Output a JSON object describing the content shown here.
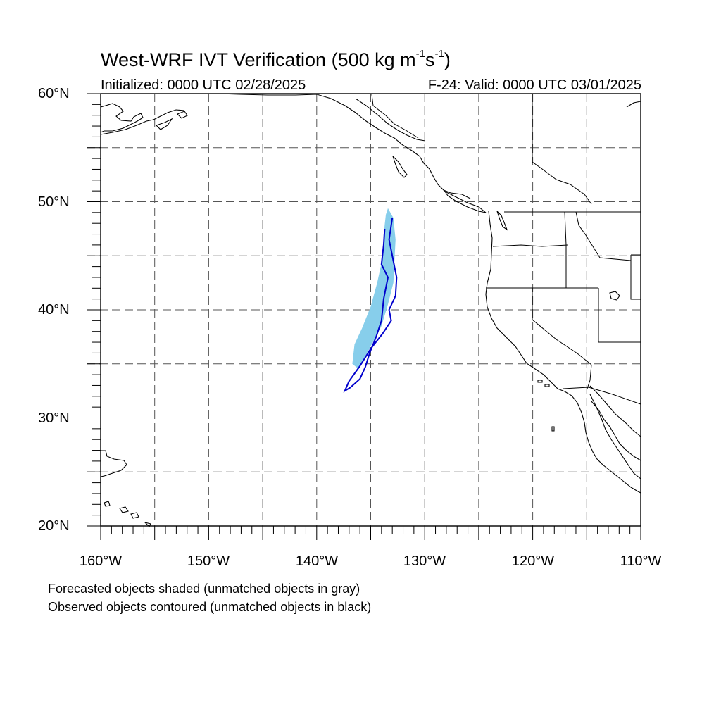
{
  "header": {
    "title_text": "West-WRF IVT Verification (500 kg m",
    "title_sup1": "-1",
    "title_mid": "s",
    "title_sup2": "-1",
    "title_end": ")",
    "initialized": "Initialized: 0000 UTC 02/28/2025",
    "valid": "F-24: Valid: 0000 UTC 03/01/2025"
  },
  "axes": {
    "lat_labels": [
      "60°N",
      "50°N",
      "40°N",
      "30°N",
      "20°N"
    ],
    "lon_labels": [
      "160°W",
      "150°W",
      "140°W",
      "130°W",
      "120°W",
      "110°W"
    ],
    "lon_range": [
      -160,
      -110
    ],
    "lat_range": [
      20,
      60
    ],
    "grid": "dashed every 5 degrees"
  },
  "legend": {
    "forecast_note": "Forecasted objects shaded (unmatched objects in gray)",
    "observed_note": "Observed objects contoured (unmatched objects in black)"
  },
  "colors": {
    "forecast_fill": "#87ceeb",
    "observed_contour": "#0000cc",
    "coastline": "#000000",
    "grid": "#000000"
  },
  "map_data": {
    "forecast_object_lonlat": [
      [
        -133.4,
        49.4
      ],
      [
        -132.9,
        48.5
      ],
      [
        -132.7,
        46.5
      ],
      [
        -132.8,
        44.5
      ],
      [
        -132.9,
        42.5
      ],
      [
        -133.4,
        40.5
      ],
      [
        -134.0,
        38.5
      ],
      [
        -134.8,
        37.0
      ],
      [
        -135.6,
        35.5
      ],
      [
        -136.1,
        34.5
      ],
      [
        -136.7,
        35.0
      ],
      [
        -136.5,
        36.8
      ],
      [
        -135.8,
        38.3
      ],
      [
        -135.0,
        40.3
      ],
      [
        -134.4,
        42.5
      ],
      [
        -133.9,
        44.8
      ],
      [
        -133.8,
        47.0
      ],
      [
        -133.6,
        48.8
      ]
    ],
    "observed_contour_lonlat": [
      [
        -133.0,
        48.5
      ],
      [
        -133.3,
        46.5
      ],
      [
        -133.0,
        45.0
      ],
      [
        -132.6,
        43.0
      ],
      [
        -132.7,
        41.3
      ],
      [
        -133.3,
        40.0
      ],
      [
        -133.1,
        39.0
      ],
      [
        -133.9,
        37.8
      ],
      [
        -135.0,
        36.4
      ],
      [
        -136.0,
        34.8
      ],
      [
        -137.0,
        33.4
      ],
      [
        -137.4,
        32.5
      ],
      [
        -136.9,
        32.8
      ],
      [
        -136.0,
        33.6
      ],
      [
        -135.5,
        34.7
      ],
      [
        -135.1,
        36.0
      ],
      [
        -134.5,
        37.5
      ],
      [
        -134.0,
        39.0
      ],
      [
        -133.8,
        41.0
      ],
      [
        -133.4,
        43.0
      ],
      [
        -134.0,
        44.2
      ],
      [
        -133.8,
        46.0
      ],
      [
        -133.7,
        47.5
      ]
    ]
  }
}
